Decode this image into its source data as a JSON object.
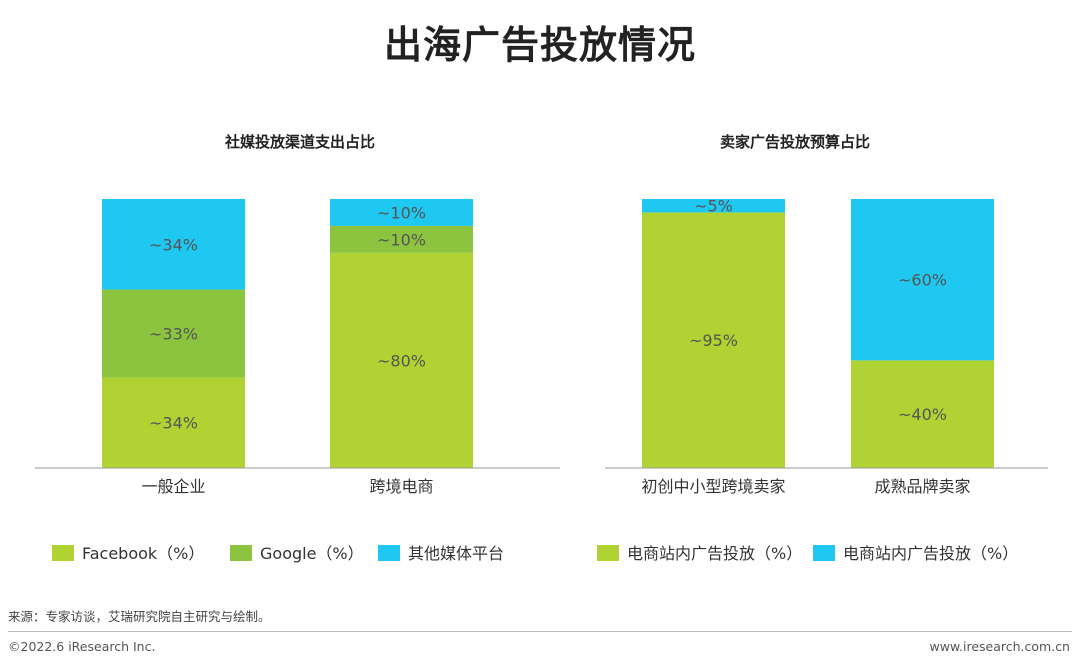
{
  "page": {
    "title": "出海广告投放情况",
    "source": "来源：专家访谈，艾瑞研究院自主研究与绘制。",
    "copyright": "©2022.6 iResearch Inc.",
    "website": "www.iresearch.com.cn"
  },
  "colors": {
    "lime": "#b0d233",
    "green": "#8cc43f",
    "cyan": "#1fc8f1",
    "axis": "#999999"
  },
  "chart_data": [
    {
      "type": "bar",
      "stacked": true,
      "percent": true,
      "title": "社媒投放渠道支出占比",
      "categories": [
        "一般企业",
        "跨境电商"
      ],
      "series": [
        {
          "name": "Facebook（%）",
          "color": "#b0d233",
          "values": [
            34,
            80
          ],
          "labels": [
            "~34%",
            "~80%"
          ]
        },
        {
          "name": "Google（%）",
          "color": "#8cc43f",
          "values": [
            33,
            10
          ],
          "labels": [
            "~33%",
            "~10%"
          ]
        },
        {
          "name": "其他媒体平台",
          "color": "#1fc8f1",
          "values": [
            34,
            10
          ],
          "labels": [
            "~34%",
            "~10%"
          ]
        }
      ],
      "legend": "bottom",
      "grid": false
    },
    {
      "type": "bar",
      "stacked": true,
      "percent": true,
      "title": "卖家广告投放预算占比",
      "categories": [
        "初创中小型跨境卖家",
        "成熟品牌卖家"
      ],
      "series": [
        {
          "name": "电商站内广告投放（%）",
          "color": "#b0d233",
          "values": [
            95,
            40
          ],
          "labels": [
            "~95%",
            "~40%"
          ]
        },
        {
          "name": "电商站内广告投放（%）",
          "color": "#1fc8f1",
          "values": [
            5,
            60
          ],
          "labels": [
            "~5%",
            "~60%"
          ]
        }
      ],
      "legend": "bottom",
      "grid": false
    }
  ]
}
